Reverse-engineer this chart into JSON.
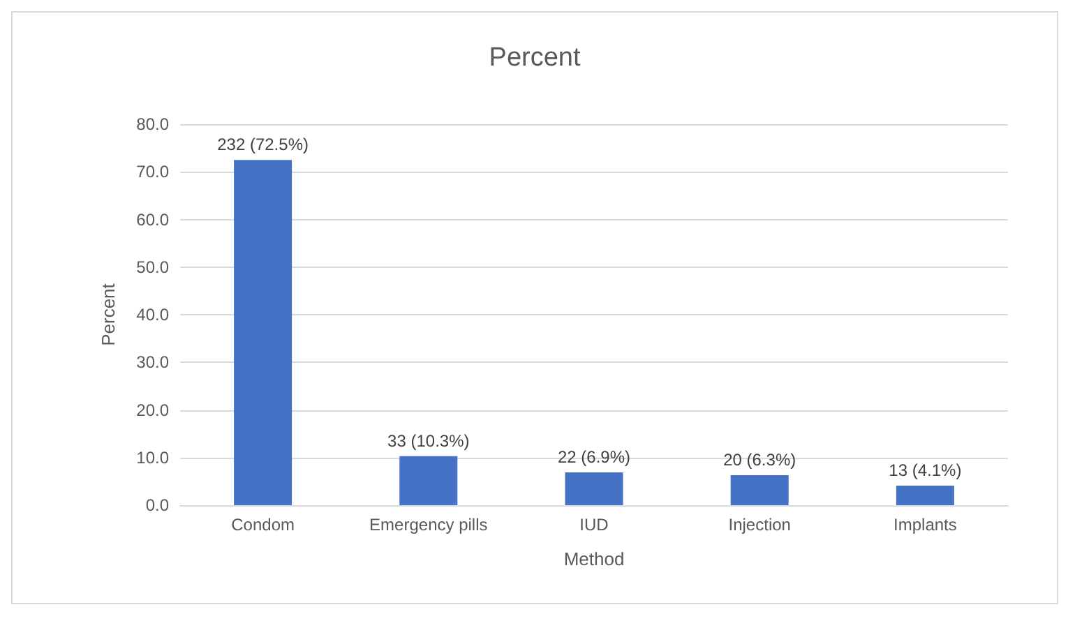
{
  "chart_data": {
    "type": "bar",
    "title": "Percent",
    "xlabel": "Method",
    "ylabel": "Percent",
    "categories": [
      "Condom",
      "Emergency pills",
      "IUD",
      "Injection",
      "Implants"
    ],
    "values": [
      72.5,
      10.3,
      6.9,
      6.3,
      4.1
    ],
    "value_labels": [
      "232 (72.5%)",
      "33 (10.3%)",
      "22 (6.9%)",
      "20 (6.3%)",
      "13 (4.1%)"
    ],
    "color": "#4472c4",
    "ylim": [
      0,
      80
    ],
    "yticks": [
      {
        "value": 0,
        "label": "0.0"
      },
      {
        "value": 10,
        "label": "10.0"
      },
      {
        "value": 20,
        "label": "20.0"
      },
      {
        "value": 30,
        "label": "30.0"
      },
      {
        "value": 40,
        "label": "40.0"
      },
      {
        "value": 50,
        "label": "50.0"
      },
      {
        "value": 60,
        "label": "60.0"
      },
      {
        "value": 70,
        "label": "70.0"
      },
      {
        "value": 80,
        "label": "80.0"
      }
    ],
    "grid": "y"
  }
}
